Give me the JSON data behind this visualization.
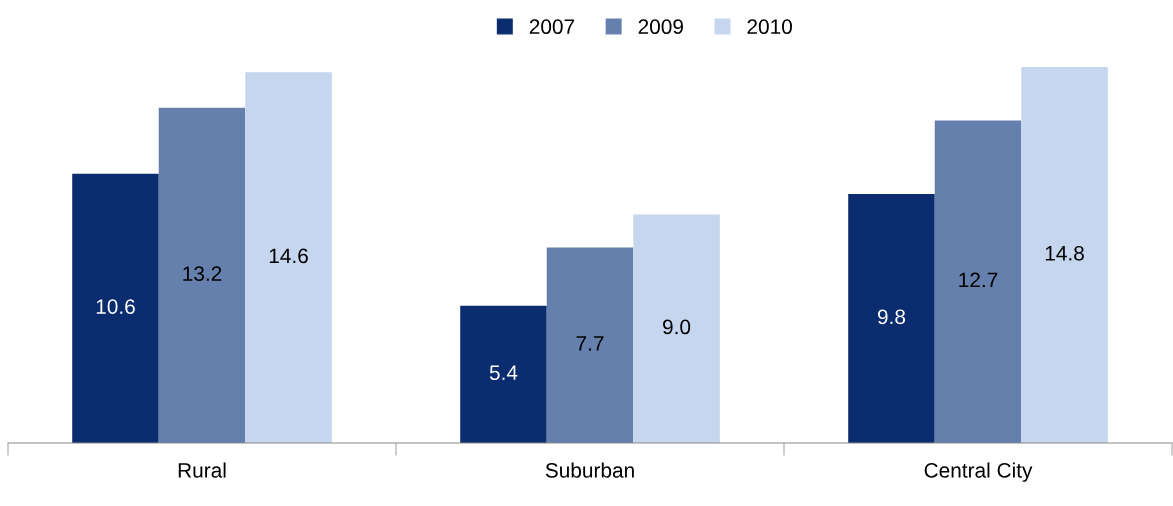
{
  "chart_data": {
    "type": "bar",
    "categories": [
      "Rural",
      "Suburban",
      "Central City"
    ],
    "series": [
      {
        "name": "2007",
        "color": "#0b2c6e",
        "values": [
          10.6,
          5.4,
          9.8
        ],
        "value_labels": [
          "10.6",
          "5.4",
          "9.8"
        ]
      },
      {
        "name": "2009",
        "color": "#6680ad",
        "values": [
          13.2,
          7.7,
          12.7
        ],
        "value_labels": [
          "13.2",
          "7.7",
          "12.7"
        ]
      },
      {
        "name": "2010",
        "color": "#c6d6ee",
        "values": [
          14.6,
          9.0,
          14.8
        ],
        "value_labels": [
          "14.6",
          "9.0",
          "14.8"
        ]
      }
    ],
    "legend": "top",
    "grid": false,
    "tick_labels": "x"
  }
}
